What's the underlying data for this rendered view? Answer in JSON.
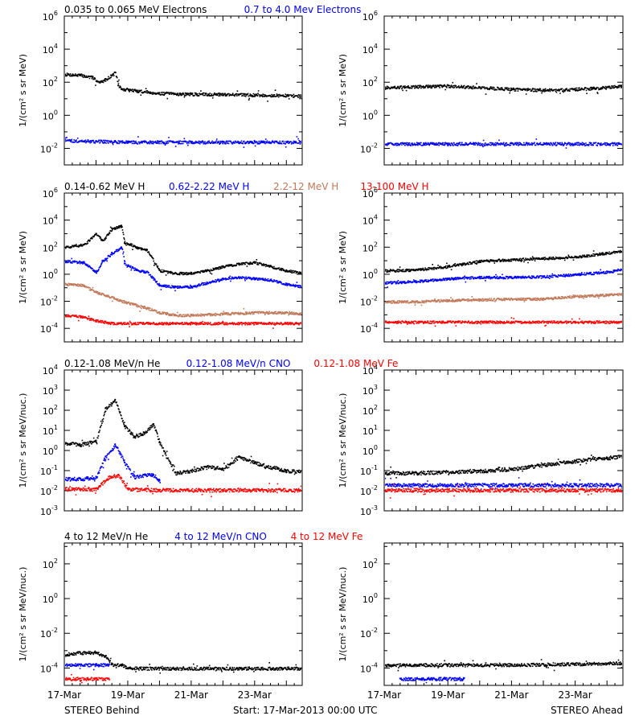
{
  "footer": {
    "left": "STEREO Behind",
    "center": "Start: 17-Mar-2013 00:00 UTC",
    "right": "STEREO Ahead"
  },
  "x_tick_labels": [
    "17-Mar",
    "19-Mar",
    "21-Mar",
    "23-Mar"
  ],
  "colors": {
    "black": "#000000",
    "blue": "#0000ff",
    "tan": "#c07858",
    "red": "#ff0000"
  },
  "rows": [
    {
      "legend": [
        {
          "text": "0.035 to 0.065 MeV Electrons",
          "color": "#000000"
        },
        {
          "text": "0.7 to 4.0 Mev Electrons",
          "color": "#0000ff"
        }
      ],
      "ylabel": "1/(cm² s sr MeV)"
    },
    {
      "legend": [
        {
          "text": "0.14-0.62 MeV H",
          "color": "#000000"
        },
        {
          "text": "0.62-2.22 MeV H",
          "color": "#0000ff"
        },
        {
          "text": "2.2-12 MeV H",
          "color": "#c07858"
        },
        {
          "text": "13-100 MeV H",
          "color": "#ff0000"
        }
      ],
      "ylabel": "1/(cm² s sr MeV)"
    },
    {
      "legend": [
        {
          "text": "0.12-1.08 MeV/n He",
          "color": "#000000"
        },
        {
          "text": "0.12-1.08 MeV/n CNO",
          "color": "#0000ff"
        },
        {
          "text": "0.12-1.08 MeV Fe",
          "color": "#ff0000"
        }
      ],
      "ylabel": "1/(cm² s sr MeV/nuc.)"
    },
    {
      "legend": [
        {
          "text": "4 to 12 MeV/n He",
          "color": "#000000"
        },
        {
          "text": "4 to 12 MeV/n CNO",
          "color": "#0000ff"
        },
        {
          "text": "4 to 12 MeV Fe",
          "color": "#ff0000"
        }
      ],
      "ylabel": "1/(cm² s sr MeV/nuc.)"
    }
  ],
  "chart_data": [
    {
      "type": "scatter",
      "position": "row1-left",
      "xlabel": "",
      "x_range_days": [
        0,
        7.5
      ],
      "ylim_log10": [
        -3,
        6
      ],
      "ytick_exponents": [
        -2,
        0,
        2,
        4,
        6
      ],
      "series": [
        {
          "name": "0.035 to 0.065 MeV Electrons",
          "color": "#000000",
          "x": [
            0,
            0.5,
            0.9,
            1.1,
            1.3,
            1.6,
            1.7,
            1.8,
            2.3,
            3,
            4,
            5,
            6,
            7.5
          ],
          "y_log10": [
            2.5,
            2.45,
            2.3,
            2.0,
            2.2,
            2.6,
            1.8,
            1.6,
            1.5,
            1.35,
            1.3,
            1.3,
            1.25,
            1.2
          ]
        },
        {
          "name": "0.7 to 4.0 Mev Electrons",
          "color": "#0000ff",
          "x": [
            0,
            1,
            2,
            3,
            4,
            5,
            6,
            7.5
          ],
          "y_log10": [
            -1.5,
            -1.55,
            -1.6,
            -1.6,
            -1.6,
            -1.6,
            -1.6,
            -1.6
          ]
        }
      ]
    },
    {
      "type": "scatter",
      "position": "row1-right",
      "xlabel": "",
      "x_range_days": [
        0,
        7.5
      ],
      "ylim_log10": [
        -3,
        6
      ],
      "ytick_exponents": [
        -2,
        0,
        2,
        4,
        6
      ],
      "series": [
        {
          "name": "0.035 to 0.065 MeV Electrons",
          "color": "#000000",
          "x": [
            0,
            1,
            2,
            3,
            4,
            5,
            6,
            7,
            7.5
          ],
          "y_log10": [
            1.7,
            1.75,
            1.8,
            1.7,
            1.6,
            1.55,
            1.6,
            1.7,
            1.8
          ]
        },
        {
          "name": "0.7 to 4.0 Mev Electrons",
          "color": "#0000ff",
          "x": [
            0,
            2,
            4,
            6,
            7.5
          ],
          "y_log10": [
            -1.7,
            -1.7,
            -1.7,
            -1.7,
            -1.7
          ]
        }
      ]
    },
    {
      "type": "scatter",
      "position": "row2-left",
      "xlabel": "",
      "x_range_days": [
        0,
        7.5
      ],
      "ylim_log10": [
        -5,
        6
      ],
      "ytick_exponents": [
        -4,
        -2,
        0,
        2,
        4,
        6
      ],
      "series": [
        {
          "name": "0.14-0.62 MeV H",
          "color": "#000000",
          "x": [
            0,
            0.6,
            1.0,
            1.2,
            1.5,
            1.8,
            1.9,
            2.1,
            2.3,
            2.6,
            3.0,
            3.5,
            4.0,
            4.5,
            5.0,
            5.5,
            6.0,
            6.5,
            7.0,
            7.5
          ],
          "y_log10": [
            2.0,
            2.2,
            3.0,
            2.5,
            3.4,
            3.6,
            2.3,
            2.2,
            2.0,
            1.8,
            0.3,
            0.1,
            0.1,
            0.3,
            0.6,
            0.8,
            0.9,
            0.6,
            0.3,
            0.1
          ]
        },
        {
          "name": "0.62-2.22 MeV H",
          "color": "#0000ff",
          "x": [
            0,
            0.6,
            1.0,
            1.2,
            1.5,
            1.8,
            1.9,
            2.3,
            2.6,
            3.0,
            3.5,
            4.0,
            4.5,
            5.0,
            5.5,
            6.0,
            6.5,
            7.0,
            7.5
          ],
          "y_log10": [
            1.0,
            0.9,
            0.2,
            1.0,
            1.6,
            2.0,
            0.8,
            0.3,
            0.2,
            -0.8,
            -0.9,
            -0.9,
            -0.6,
            -0.3,
            -0.2,
            -0.3,
            -0.4,
            -0.7,
            -0.9
          ]
        },
        {
          "name": "2.2-12 MeV H",
          "color": "#c07858",
          "x": [
            0,
            0.6,
            1.0,
            1.5,
            2.0,
            2.5,
            3.0,
            3.5,
            4.0,
            5.0,
            6.0,
            7.0,
            7.5
          ],
          "y_log10": [
            -0.7,
            -0.8,
            -1.3,
            -1.7,
            -2.1,
            -2.4,
            -2.8,
            -3.0,
            -3.0,
            -2.9,
            -2.8,
            -2.8,
            -2.9
          ]
        },
        {
          "name": "13-100 MeV H",
          "color": "#ff0000",
          "x": [
            0,
            0.5,
            1.0,
            1.5,
            2.0,
            3.0,
            4.0,
            5.0,
            6.0,
            7.0,
            7.5
          ],
          "y_log10": [
            -3.0,
            -3.1,
            -3.4,
            -3.6,
            -3.6,
            -3.6,
            -3.6,
            -3.6,
            -3.6,
            -3.6,
            -3.6
          ]
        }
      ]
    },
    {
      "type": "scatter",
      "position": "row2-right",
      "xlabel": "",
      "x_range_days": [
        0,
        7.5
      ],
      "ylim_log10": [
        -5,
        6
      ],
      "ytick_exponents": [
        -4,
        -2,
        0,
        2,
        4,
        6
      ],
      "series": [
        {
          "name": "0.14-0.62 MeV H",
          "color": "#000000",
          "x": [
            0,
            1,
            2,
            3,
            4,
            5,
            6,
            7,
            7.5
          ],
          "y_log10": [
            0.3,
            0.35,
            0.6,
            1.0,
            1.1,
            1.2,
            1.3,
            1.6,
            1.75
          ]
        },
        {
          "name": "0.62-2.22 MeV H",
          "color": "#0000ff",
          "x": [
            0,
            1,
            2,
            3,
            4,
            5,
            6,
            7,
            7.5
          ],
          "y_log10": [
            -0.6,
            -0.5,
            -0.3,
            -0.2,
            -0.2,
            -0.15,
            0.0,
            0.2,
            0.4
          ]
        },
        {
          "name": "2.2-12 MeV H",
          "color": "#c07858",
          "x": [
            0,
            1,
            2,
            3,
            4,
            5,
            6,
            7,
            7.5
          ],
          "y_log10": [
            -2.0,
            -2.0,
            -1.9,
            -1.85,
            -1.8,
            -1.8,
            -1.6,
            -1.5,
            -1.45
          ]
        },
        {
          "name": "13-100 MeV H",
          "color": "#ff0000",
          "x": [
            0,
            2,
            4,
            6,
            7.5
          ],
          "y_log10": [
            -3.5,
            -3.5,
            -3.5,
            -3.5,
            -3.5
          ]
        }
      ]
    },
    {
      "type": "scatter",
      "position": "row3-left",
      "xlabel": "",
      "x_range_days": [
        0,
        7.5
      ],
      "ylim_log10": [
        -3,
        4
      ],
      "ytick_exponents": [
        -3,
        -2,
        -1,
        0,
        1,
        2,
        3,
        4
      ],
      "series": [
        {
          "name": "0.12-1.08 MeV/n He",
          "color": "#000000",
          "x": [
            0,
            0.5,
            1.0,
            1.3,
            1.6,
            1.9,
            2.2,
            2.5,
            2.8,
            3.0,
            3.5,
            4.0,
            4.5,
            5.0,
            5.5,
            6.0,
            6.5,
            7.0,
            7.5
          ],
          "y_log10": [
            0.4,
            0.3,
            0.5,
            2.1,
            2.5,
            1.2,
            0.7,
            0.9,
            1.3,
            0.4,
            -1.1,
            -1.0,
            -0.8,
            -0.9,
            -0.3,
            -0.6,
            -0.8,
            -1.0,
            -1.0
          ]
        },
        {
          "name": "0.12-1.08 MeV/n CNO",
          "color": "#0000ff",
          "x": [
            0,
            0.5,
            1.0,
            1.3,
            1.6,
            1.9,
            2.2,
            2.5,
            2.8,
            3.0
          ],
          "y_log10": [
            -1.4,
            -1.4,
            -1.3,
            -0.3,
            0.3,
            -0.6,
            -1.3,
            -1.2,
            -1.2,
            -1.5
          ]
        },
        {
          "name": "0.12-1.08 MeV Fe",
          "color": "#ff0000",
          "x": [
            0,
            1.0,
            1.4,
            1.7,
            2.0,
            3.0,
            5.0,
            7.5
          ],
          "y_log10": [
            -1.9,
            -1.9,
            -1.3,
            -1.2,
            -1.9,
            -1.95,
            -1.95,
            -1.95
          ]
        }
      ]
    },
    {
      "type": "scatter",
      "position": "row3-right",
      "xlabel": "",
      "x_range_days": [
        0,
        7.5
      ],
      "ylim_log10": [
        -3,
        4
      ],
      "ytick_exponents": [
        -3,
        -2,
        -1,
        0,
        1,
        2,
        3,
        4
      ],
      "series": [
        {
          "name": "0.12-1.08 MeV/n He",
          "color": "#000000",
          "x": [
            0,
            1,
            2,
            3,
            4,
            5,
            6,
            7,
            7.5
          ],
          "y_log10": [
            -1.1,
            -1.1,
            -1.05,
            -1.0,
            -0.9,
            -0.7,
            -0.5,
            -0.35,
            -0.25
          ]
        },
        {
          "name": "0.12-1.08 MeV/n CNO",
          "color": "#0000ff",
          "x": [
            0,
            2,
            4,
            6,
            7.5
          ],
          "y_log10": [
            -1.7,
            -1.7,
            -1.7,
            -1.7,
            -1.7
          ]
        },
        {
          "name": "0.12-1.08 MeV Fe",
          "color": "#ff0000",
          "x": [
            0,
            2,
            4,
            6,
            7.5
          ],
          "y_log10": [
            -1.95,
            -1.95,
            -1.95,
            -1.95,
            -1.95
          ]
        }
      ]
    },
    {
      "type": "scatter",
      "position": "row4-left",
      "xlabel": "",
      "x_range_days": [
        0,
        7.5
      ],
      "ylim_log10": [
        -5,
        3.2
      ],
      "ytick_exponents": [
        -4,
        -2,
        0,
        2
      ],
      "series": [
        {
          "name": "4 to 12 MeV/n He",
          "color": "#000000",
          "x": [
            0,
            0.5,
            1.0,
            1.3,
            1.5,
            1.8,
            2.0,
            3.0,
            5.0,
            7.5
          ],
          "y_log10": [
            -3.2,
            -3.1,
            -3.1,
            -3.3,
            -3.8,
            -3.8,
            -4.0,
            -4.0,
            -4.0,
            -4.0
          ]
        },
        {
          "name": "4 to 12 MeV/n CNO",
          "color": "#0000ff",
          "x": [
            0,
            0.5,
            1.0,
            1.4
          ],
          "y_log10": [
            -3.8,
            -3.8,
            -3.8,
            -3.8
          ]
        },
        {
          "name": "4 to 12 MeV Fe",
          "color": "#ff0000",
          "x": [
            0,
            0.5,
            1.0,
            1.4
          ],
          "y_log10": [
            -4.6,
            -4.6,
            -4.6,
            -4.6
          ]
        }
      ]
    },
    {
      "type": "scatter",
      "position": "row4-right",
      "xlabel": "",
      "x_range_days": [
        0,
        7.5
      ],
      "ylim_log10": [
        -5,
        3.2
      ],
      "ytick_exponents": [
        -4,
        -2,
        0,
        2
      ],
      "series": [
        {
          "name": "4 to 12 MeV/n He",
          "color": "#000000",
          "x": [
            0,
            2,
            4,
            6,
            7.5
          ],
          "y_log10": [
            -3.8,
            -3.8,
            -3.8,
            -3.75,
            -3.7
          ]
        },
        {
          "name": "4 to 12 MeV/n CNO",
          "color": "#0000ff",
          "x": [
            0.5,
            2.5
          ],
          "y_log10": [
            -4.6,
            -4.6
          ]
        }
      ]
    }
  ]
}
